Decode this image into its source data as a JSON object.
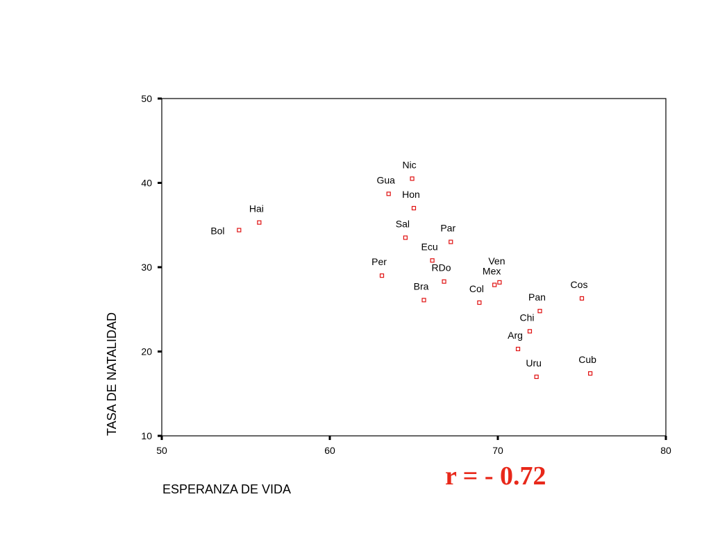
{
  "chart_data": {
    "type": "scatter",
    "title": "",
    "xlabel": "ESPERANZA DE VIDA",
    "ylabel": "TASA DE NATALIDAD",
    "xlim": [
      50,
      80
    ],
    "ylim": [
      10,
      50
    ],
    "xticks": [
      "50",
      "60",
      "70",
      "80"
    ],
    "yticks": [
      "10",
      "20",
      "30",
      "40",
      "50"
    ],
    "grid": false,
    "marker_color": "#e01010",
    "points": [
      {
        "label": "Bol",
        "x": 54.6,
        "y": 34.4
      },
      {
        "label": "Hai",
        "x": 55.8,
        "y": 35.3
      },
      {
        "label": "Nic",
        "x": 64.9,
        "y": 40.5
      },
      {
        "label": "Gua",
        "x": 63.5,
        "y": 38.7
      },
      {
        "label": "Hon",
        "x": 65.0,
        "y": 37.0
      },
      {
        "label": "Sal",
        "x": 64.5,
        "y": 33.5
      },
      {
        "label": "Par",
        "x": 67.2,
        "y": 33.0
      },
      {
        "label": "Ecu",
        "x": 66.1,
        "y": 30.8
      },
      {
        "label": "Per",
        "x": 63.1,
        "y": 29.0
      },
      {
        "label": "RDo",
        "x": 66.8,
        "y": 28.3
      },
      {
        "label": "Bra",
        "x": 65.6,
        "y": 26.1
      },
      {
        "label": "Mex",
        "x": 69.8,
        "y": 27.9
      },
      {
        "label": "Ven",
        "x": 70.1,
        "y": 28.2
      },
      {
        "label": "Col",
        "x": 68.9,
        "y": 25.8
      },
      {
        "label": "Cos",
        "x": 75.0,
        "y": 26.3
      },
      {
        "label": "Pan",
        "x": 72.5,
        "y": 24.8
      },
      {
        "label": "Chi",
        "x": 71.9,
        "y": 22.4
      },
      {
        "label": "Arg",
        "x": 71.2,
        "y": 20.3
      },
      {
        "label": "Uru",
        "x": 72.3,
        "y": 17.0
      },
      {
        "label": "Cub",
        "x": 75.5,
        "y": 17.4
      }
    ]
  },
  "annotation": {
    "text": "r = - 0.72",
    "color": "#e8281a"
  }
}
